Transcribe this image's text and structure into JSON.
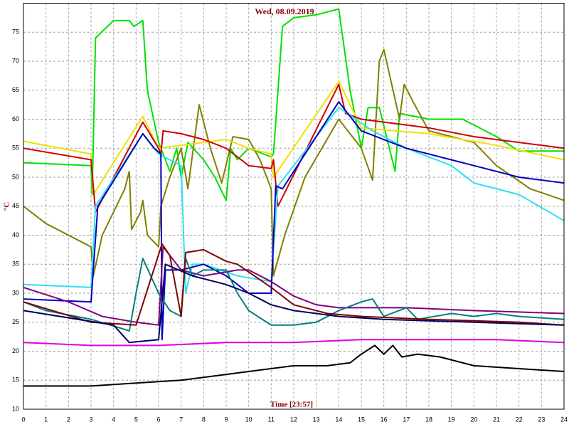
{
  "chart_data": {
    "type": "line",
    "title": "Wed, 08.09.2019",
    "x_label": "Time [23:57]",
    "y_label": "°C",
    "xlim": [
      0,
      24
    ],
    "ylim": [
      10,
      80
    ],
    "xticks": [
      0,
      1,
      2,
      3,
      4,
      5,
      6,
      7,
      8,
      9,
      10,
      11,
      12,
      13,
      14,
      15,
      16,
      17,
      18,
      19,
      20,
      21,
      22,
      23,
      24
    ],
    "yticks": [
      10,
      15,
      20,
      25,
      30,
      35,
      40,
      45,
      50,
      55,
      60,
      65,
      70,
      75
    ],
    "grid": true,
    "series": [
      {
        "color": "#00e000",
        "x": [
          0,
          3,
          3.05,
          3.2,
          4,
          4.7,
          4.9,
          5.3,
          5.5,
          6,
          6.5,
          6.8,
          7,
          7.3,
          8,
          8.5,
          9,
          9.2,
          9.5,
          10,
          11,
          11.1,
          11.5,
          12,
          13,
          14,
          14.5,
          15,
          15.3,
          15.8,
          16.5,
          16.7,
          18,
          19.5,
          21,
          22,
          24
        ],
        "values": [
          52.5,
          52,
          47,
          74,
          77,
          77,
          76,
          77,
          65,
          56,
          51,
          55,
          50,
          56,
          53,
          50,
          46,
          55,
          53,
          55,
          53.5,
          54,
          76,
          77.5,
          78,
          79,
          65,
          55,
          62,
          62,
          51,
          61,
          60,
          60,
          57,
          54.5,
          54.5
        ]
      },
      {
        "color": "#808000",
        "x": [
          0,
          1,
          2,
          3,
          3.1,
          3.5,
          4.5,
          4.7,
          4.8,
          5.2,
          5.3,
          5.5,
          6,
          6.1,
          6.5,
          7,
          7.3,
          7.8,
          8.3,
          8.8,
          9.3,
          10,
          10.5,
          11,
          11.1,
          11.6,
          12.5,
          14,
          15,
          15.5,
          15.8,
          16,
          16.7,
          16.9,
          17.3,
          18,
          20,
          21,
          22.5,
          24
        ],
        "values": [
          45,
          42,
          40,
          38,
          33,
          40,
          48,
          51,
          41,
          44,
          46,
          40,
          38,
          45,
          50,
          55,
          48,
          62.5,
          55,
          49,
          57,
          56.5,
          53,
          48,
          33,
          40,
          50,
          60,
          55,
          49.5,
          70,
          72,
          60,
          66,
          63,
          58,
          56,
          52,
          48,
          46
        ]
      },
      {
        "color": "#f0e000",
        "x": [
          0,
          3,
          3.1,
          5.3,
          6,
          7,
          9,
          10,
          11,
          11.1,
          14,
          15,
          18,
          21,
          24
        ],
        "values": [
          56.2,
          54,
          47,
          60.5,
          55,
          55.5,
          56.5,
          55,
          54,
          50,
          66.5,
          58.5,
          57.5,
          55.5,
          53
        ]
      },
      {
        "color": "#d00000",
        "x": [
          0,
          3,
          3.2,
          5.3,
          6,
          6.1,
          6.2,
          7,
          8,
          9,
          10,
          11,
          11.1,
          11.3,
          14,
          14.3,
          15,
          18,
          20,
          22,
          24
        ],
        "values": [
          55,
          53,
          44,
          59.5,
          55,
          54,
          58,
          57.5,
          56.5,
          55,
          52,
          51.5,
          53,
          45,
          66,
          61,
          60,
          58.5,
          57,
          56,
          55
        ]
      },
      {
        "color": "#30e0f0",
        "x": [
          0,
          3,
          3.2,
          5.3,
          6,
          7,
          7.2,
          7.5,
          8,
          9.5,
          11,
          11.3,
          14,
          15.5,
          17,
          19,
          20,
          22,
          24
        ],
        "values": [
          31.5,
          31,
          45,
          57.5,
          54,
          52,
          30,
          35,
          35,
          33,
          32,
          48.5,
          62,
          58,
          55,
          52,
          49,
          47,
          42.5
        ]
      },
      {
        "color": "#0000c0",
        "x": [
          0,
          3,
          3.3,
          5.3,
          5.8,
          6.1,
          6.15,
          6.3,
          7,
          8,
          9,
          10,
          11,
          11.2,
          11.5,
          14,
          15,
          17,
          20,
          22,
          24
        ],
        "values": [
          29,
          28.5,
          45,
          57.5,
          55,
          54,
          22,
          34,
          34,
          35,
          33,
          30,
          30,
          48.5,
          48,
          63,
          58,
          55,
          52,
          50,
          49
        ]
      },
      {
        "color": "#800080",
        "x": [
          0,
          2,
          3.5,
          5,
          6,
          6.2,
          7,
          8,
          9.5,
          10,
          11,
          12,
          13,
          14,
          15,
          17,
          20,
          24
        ],
        "values": [
          31,
          28.5,
          26,
          25,
          24.5,
          38,
          34,
          33,
          34,
          34,
          32,
          29.5,
          28,
          27.5,
          27.5,
          27.5,
          27,
          26.5
        ]
      },
      {
        "color": "#008080",
        "x": [
          0,
          1,
          3,
          4.3,
          4.7,
          5,
          5.3,
          6,
          6.5,
          7,
          7.2,
          7.5,
          8,
          9,
          9.5,
          10,
          11,
          12,
          13,
          14,
          15,
          15.5,
          16,
          17,
          17.5,
          19,
          20,
          21,
          22,
          24
        ],
        "values": [
          28.5,
          27,
          25.5,
          24,
          23.5,
          30,
          36,
          30,
          27,
          26,
          36,
          33,
          34,
          34,
          30,
          27,
          24.5,
          24.5,
          25,
          27,
          28.5,
          29,
          26,
          27.5,
          25.5,
          26.5,
          26,
          26.5,
          26,
          25.5
        ]
      },
      {
        "color": "#800000",
        "x": [
          0,
          3,
          5,
          6.15,
          6.5,
          7,
          7.2,
          8,
          9,
          9.5,
          11,
          12,
          13.5,
          15,
          18,
          22,
          24
        ],
        "values": [
          28.5,
          25,
          24.5,
          38.5,
          36.5,
          26,
          37,
          37.5,
          35.5,
          35,
          31,
          28,
          26.5,
          26,
          25.5,
          25,
          24.5
        ]
      },
      {
        "color": "#000060",
        "x": [
          0,
          4,
          4.7,
          6,
          6.3,
          7.5,
          9,
          10,
          11,
          12,
          14,
          16,
          20,
          24
        ],
        "values": [
          27,
          24.5,
          21.5,
          22,
          35,
          33,
          31.5,
          30,
          28,
          27,
          26,
          25.5,
          25,
          24.5
        ]
      },
      {
        "color": "#e000e0",
        "x": [
          0,
          3,
          6,
          9,
          12,
          15,
          18,
          21,
          24
        ],
        "values": [
          21.5,
          21,
          21,
          21.5,
          21.5,
          22,
          22,
          22,
          21.5
        ]
      },
      {
        "color": "#000000",
        "x": [
          0,
          3,
          5,
          7,
          8,
          10,
          12,
          13.5,
          14.5,
          15,
          15.6,
          16,
          16.4,
          16.8,
          17.5,
          18.5,
          20,
          22,
          24
        ],
        "values": [
          14,
          14,
          14.5,
          15,
          15.5,
          16.5,
          17.5,
          17.5,
          18,
          19.5,
          21,
          19.5,
          21,
          19,
          19.5,
          19,
          17.5,
          17,
          16.5
        ]
      }
    ]
  }
}
